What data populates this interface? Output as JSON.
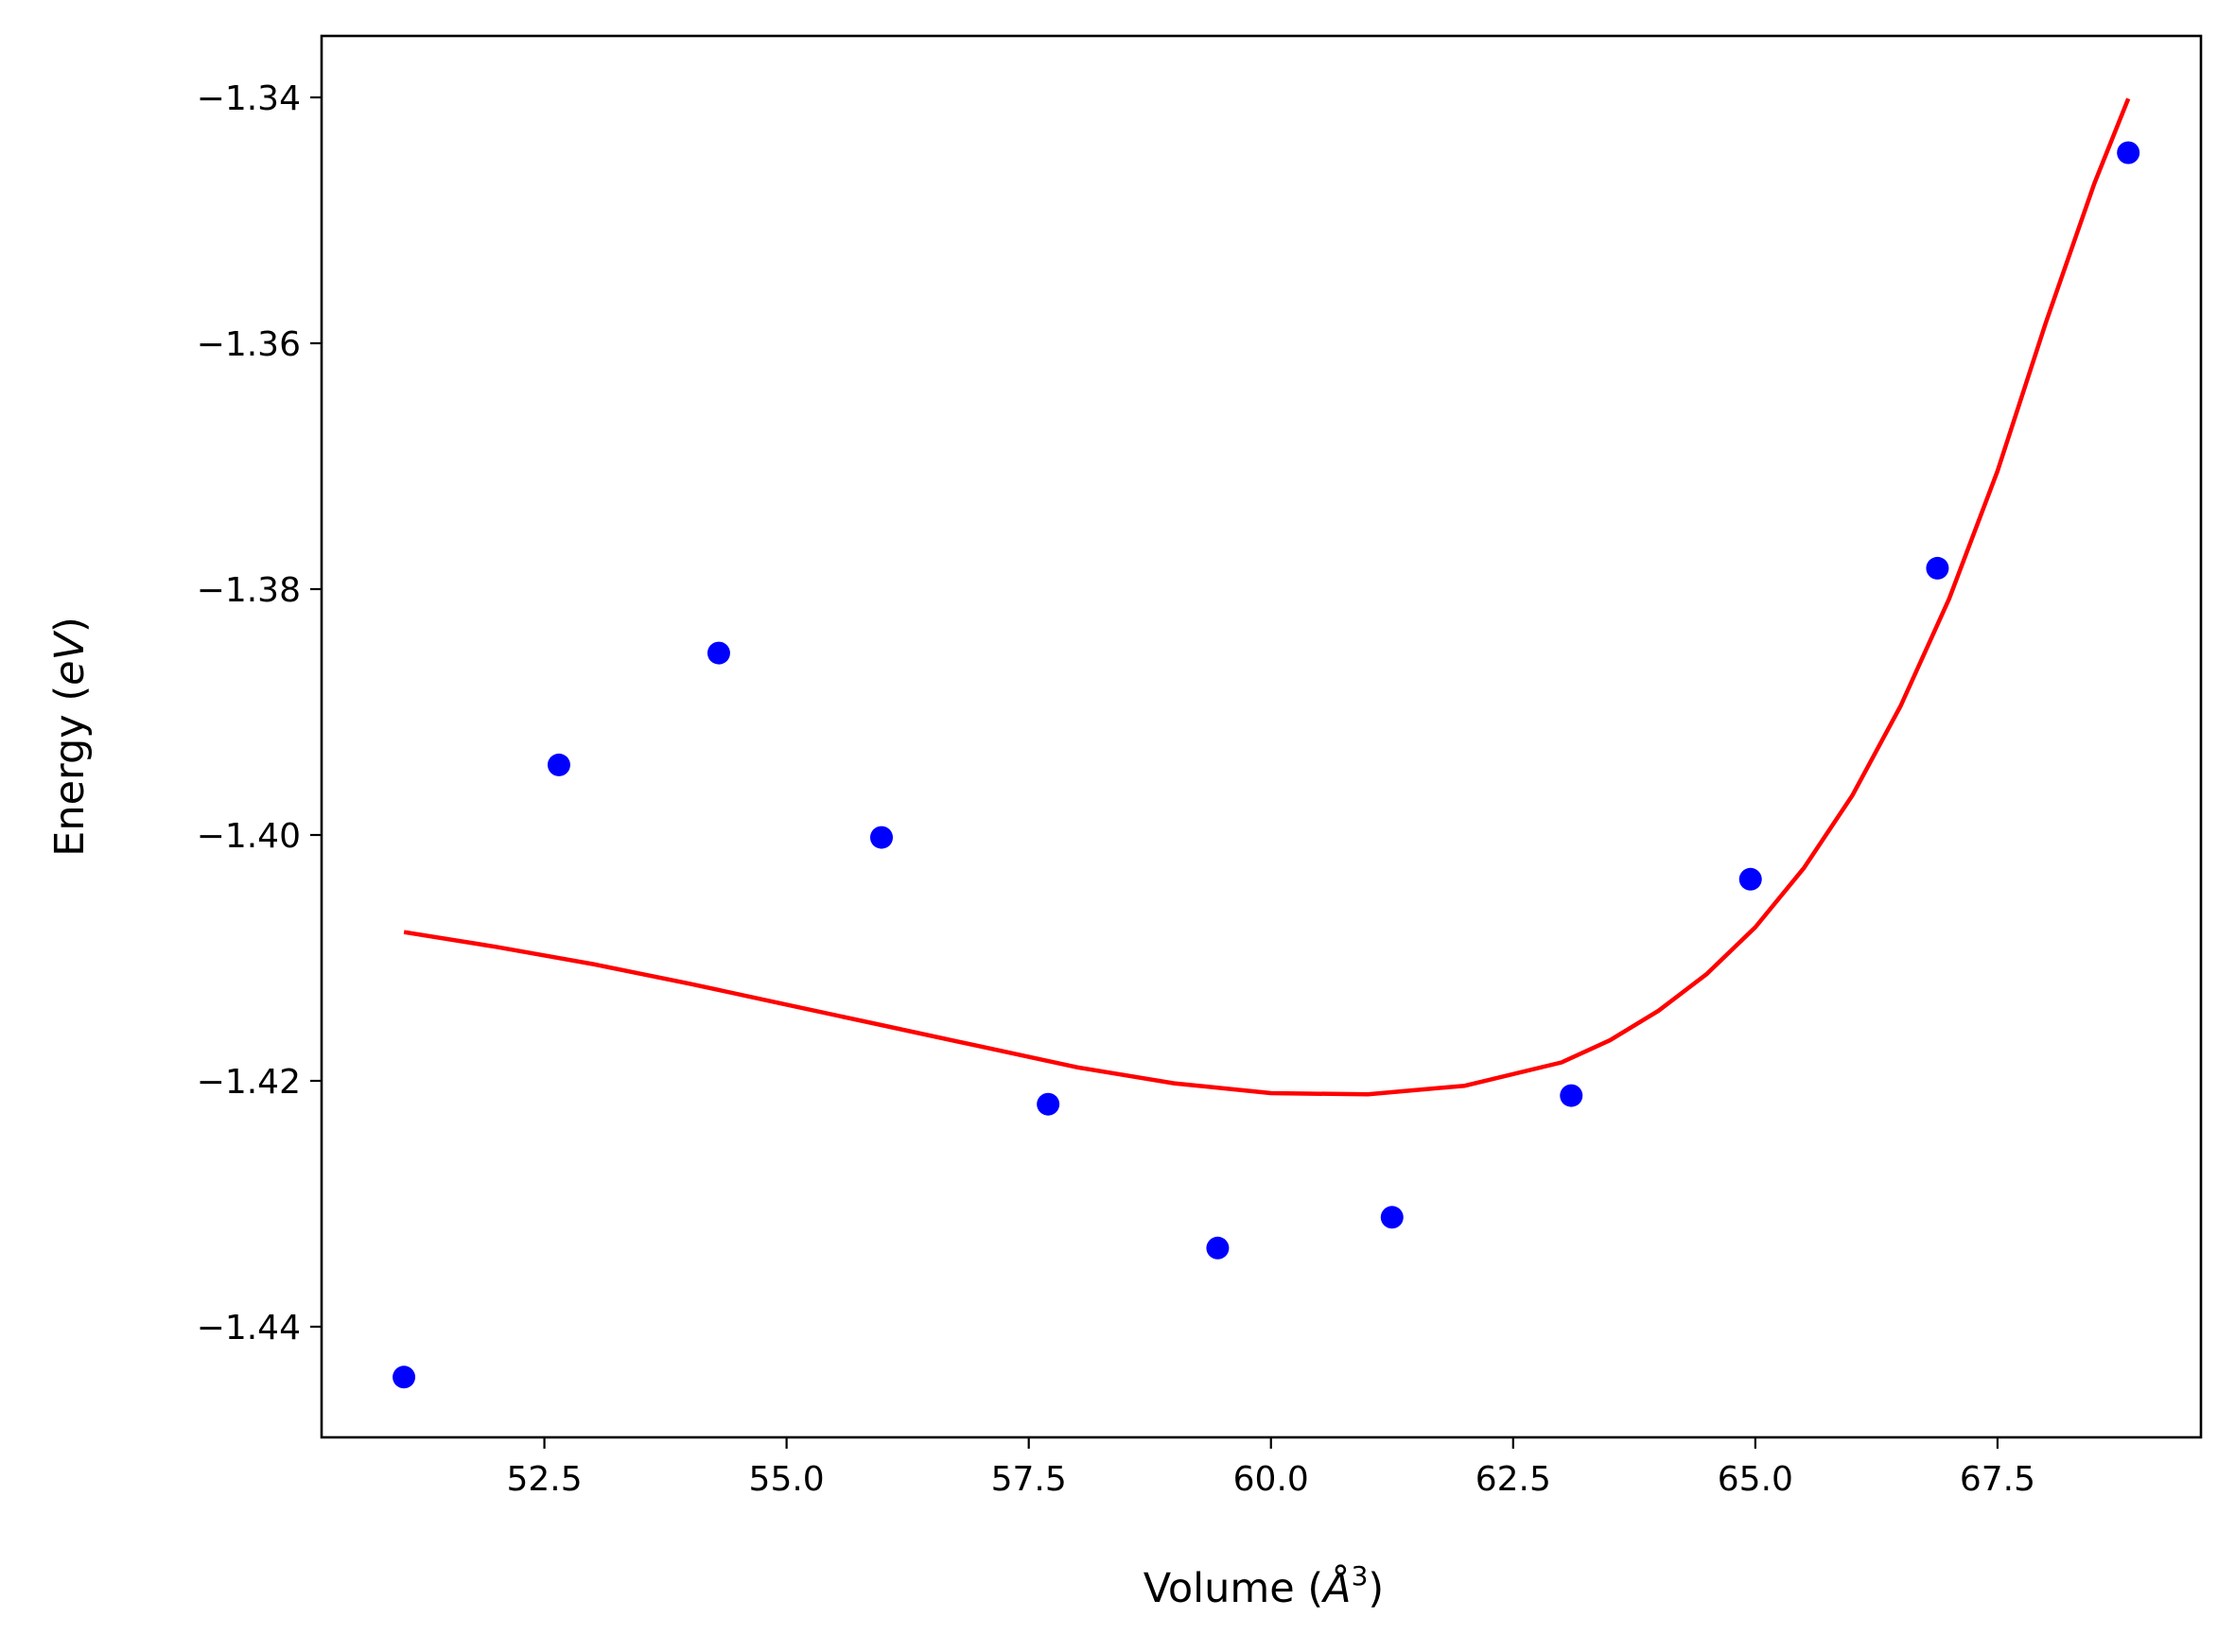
{
  "chart_data": {
    "type": "scatter",
    "title": "",
    "xlabel": "Volume (Å³)",
    "xlabel_parts": {
      "prefix": "Volume (",
      "symbol": "Å",
      "exponent": "3",
      "suffix": ")"
    },
    "ylabel": "Energy (eV)",
    "ylabel_parts": {
      "prefix": "Energy (",
      "unit": "eV",
      "suffix": ")"
    },
    "xlim": [
      50.2,
      69.6
    ],
    "ylim": [
      -1.449,
      -1.335
    ],
    "grid": false,
    "legend": "none",
    "x_ticks": [
      {
        "value": 52.5,
        "label": "52.5"
      },
      {
        "value": 55.0,
        "label": "55.0"
      },
      {
        "value": 57.5,
        "label": "57.5"
      },
      {
        "value": 60.0,
        "label": "60.0"
      },
      {
        "value": 62.5,
        "label": "62.5"
      },
      {
        "value": 65.0,
        "label": "65.0"
      },
      {
        "value": 67.5,
        "label": "67.5"
      }
    ],
    "y_ticks": [
      {
        "value": -1.34,
        "label": "−1.34"
      },
      {
        "value": -1.36,
        "label": "−1.36"
      },
      {
        "value": -1.38,
        "label": "−1.38"
      },
      {
        "value": -1.4,
        "label": "−1.40"
      },
      {
        "value": -1.42,
        "label": "−1.42"
      },
      {
        "value": -1.44,
        "label": "−1.44"
      }
    ],
    "series": [
      {
        "kind": "scatter",
        "color": "#0000ff",
        "x": [
          51.05,
          52.65,
          54.3,
          55.98,
          57.7,
          59.45,
          61.25,
          63.1,
          64.95,
          66.88,
          68.85
        ],
        "y": [
          -1.4441,
          -1.3943,
          -1.3852,
          -1.4002,
          -1.4219,
          -1.4336,
          -1.4311,
          -1.4212,
          -1.4036,
          -1.3783,
          -1.3445
        ]
      },
      {
        "kind": "line",
        "color": "#ff0000",
        "x": [
          51.05,
          52.0,
          53.0,
          54.0,
          55.0,
          56.0,
          57.0,
          58.0,
          59.0,
          60.0,
          61.0,
          62.0,
          63.0,
          63.5,
          64.0,
          64.5,
          65.0,
          65.5,
          66.0,
          66.5,
          67.0,
          67.5,
          68.0,
          68.5,
          68.85
        ],
        "y": [
          -1.4079,
          -1.4091,
          -1.4105,
          -1.4121,
          -1.4138,
          -1.4155,
          -1.4172,
          -1.4189,
          -1.4202,
          -1.421,
          -1.4211,
          -1.4204,
          -1.4185,
          -1.4167,
          -1.4143,
          -1.4113,
          -1.4075,
          -1.4027,
          -1.3968,
          -1.3895,
          -1.3808,
          -1.3704,
          -1.3583,
          -1.347,
          -1.3401
        ]
      }
    ]
  }
}
